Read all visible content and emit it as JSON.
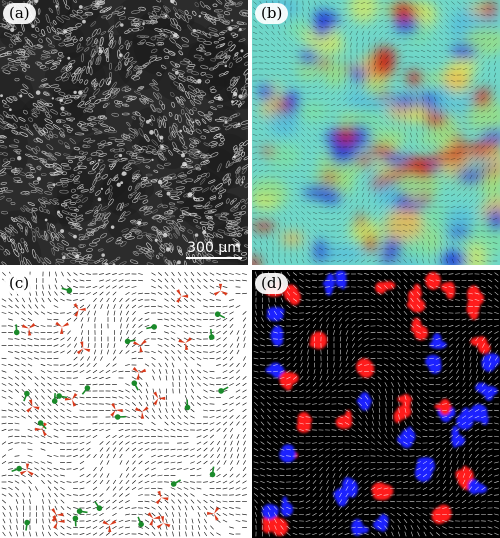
{
  "panels": [
    {
      "id": "a",
      "label": "(a)",
      "kind": "micrograph",
      "scalebar": "300 µm"
    },
    {
      "id": "b",
      "label": "(b)",
      "kind": "heatmap"
    },
    {
      "id": "c",
      "label": "(c)",
      "kind": "defects"
    },
    {
      "id": "d",
      "label": "(d)",
      "kind": "blobs"
    }
  ],
  "colors": {
    "positive_defect": "#d83a1c",
    "negative_defect": "#1a8a2a",
    "blob_red": "#ff1a1a",
    "blob_blue": "#1a24ff",
    "heat_low": "#1633d6",
    "heat_mid": "#6fd7c9",
    "heat_high": "#c8160e"
  },
  "icons": [
    "trefoil-defect-icon",
    "comet-defect-icon"
  ]
}
